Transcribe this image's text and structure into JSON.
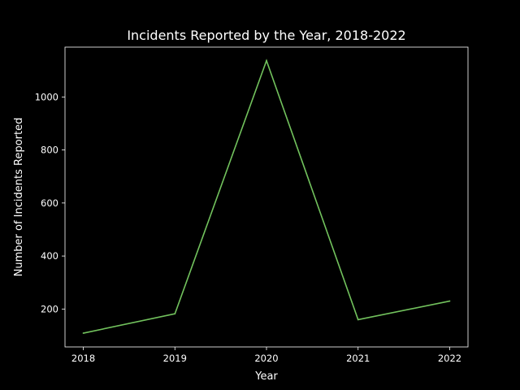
{
  "chart_data": {
    "type": "line",
    "title": "Incidents Reported by the Year, 2018-2022",
    "xlabel": "Year",
    "ylabel": "Number of Incidents Reported",
    "x": [
      2018,
      2019,
      2020,
      2021,
      2022
    ],
    "x_tick_labels": [
      "2018",
      "2019",
      "2020",
      "2021",
      "2022"
    ],
    "series": [
      {
        "values": [
          109,
          182,
          1137,
          160,
          230
        ]
      }
    ],
    "y_ticks": [
      200,
      400,
      600,
      800,
      1000
    ],
    "y_tick_labels": [
      "200",
      "400",
      "600",
      "800",
      "1000"
    ],
    "ylim": [
      57,
      1188
    ],
    "xlim": [
      2017.8,
      2022.2
    ],
    "grid": false,
    "line_color": "#72c25d",
    "background_color": "#000000",
    "foreground_color": "#ffffff"
  }
}
